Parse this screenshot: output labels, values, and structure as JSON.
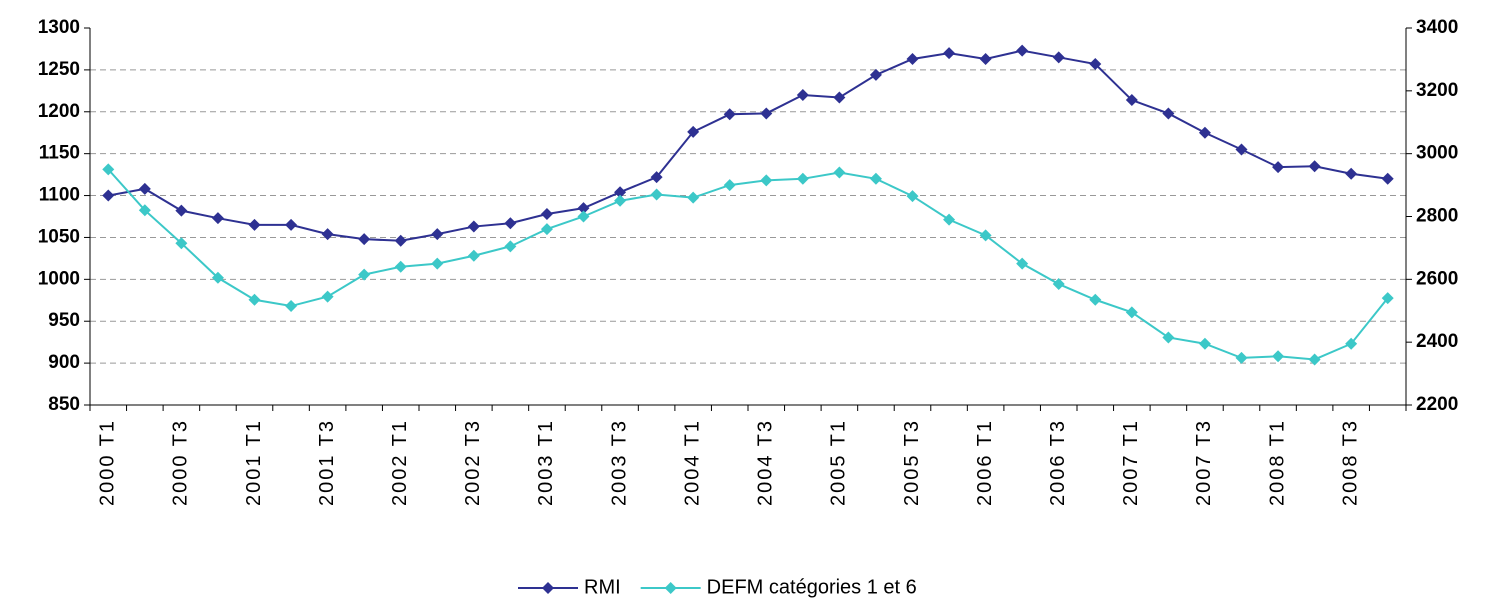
{
  "chart_data": {
    "type": "line",
    "categories": [
      "2000 T1",
      null,
      "2000 T3",
      null,
      "2001 T1",
      null,
      "2001 T3",
      null,
      "2002 T1",
      null,
      "2002 T3",
      null,
      "2003 T1",
      null,
      "2003 T3",
      null,
      "2004 T1",
      null,
      "2004 T3",
      null,
      "2005 T1",
      null,
      "2005 T3",
      null,
      "2006 T1",
      null,
      "2006 T3",
      null,
      "2007 T1",
      null,
      "2007 T3",
      null,
      "2008 T1",
      null,
      "2008 T3",
      null
    ],
    "series": [
      {
        "name": "RMI",
        "color": "#2e3192",
        "values": [
          1100,
          1108,
          1082,
          1073,
          1065,
          1065,
          1054,
          1048,
          1046,
          1054,
          1063,
          1067,
          1078,
          1085,
          1104,
          1122,
          1176,
          1197,
          1198,
          1220,
          1217,
          1244,
          1263,
          1270,
          1263,
          1273,
          1265,
          1257,
          1214,
          1198,
          1175,
          1155,
          1134,
          1135,
          1126,
          1120
        ]
      },
      {
        "name": "DEFM catégories 1 et 6",
        "color": "#3cc8c8",
        "axis": "y2",
        "values": [
          2950,
          2820,
          2715,
          2605,
          2535,
          2515,
          2545,
          2615,
          2640,
          2650,
          2675,
          2705,
          2760,
          2800,
          2850,
          2870,
          2860,
          2900,
          2915,
          2920,
          2940,
          2920,
          2865,
          2790,
          2740,
          2650,
          2585,
          2535,
          2495,
          2415,
          2395,
          2350,
          2355,
          2345,
          2395,
          2540
        ]
      }
    ],
    "ylim": [
      850,
      1300
    ],
    "yticks": [
      850,
      900,
      950,
      1000,
      1050,
      1100,
      1150,
      1200,
      1250,
      1300
    ],
    "y2lim": [
      2200,
      3400
    ],
    "y2ticks": [
      2200,
      2400,
      2600,
      2800,
      3000,
      3200,
      3400
    ],
    "grid": true,
    "legend": "bottom"
  }
}
